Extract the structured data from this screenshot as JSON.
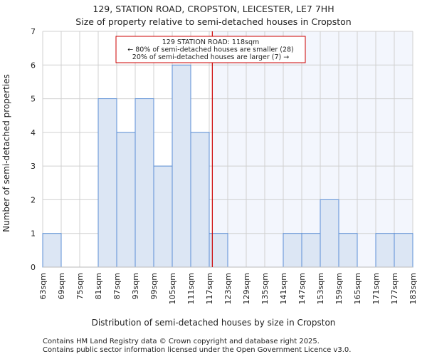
{
  "chart_data": {
    "type": "bar",
    "title": "129, STATION ROAD, CROPSTON, LEICESTER, LE7 7HH",
    "subtitle": "Size of property relative to semi-detached houses in Cropston",
    "xlabel": "Distribution of semi-detached houses by size in Cropston",
    "ylabel": "Number of semi-detached properties",
    "bin_edges": [
      63,
      69,
      75,
      81,
      87,
      93,
      99,
      105,
      111,
      117,
      123,
      129,
      135,
      141,
      147,
      153,
      159,
      165,
      171,
      177,
      183
    ],
    "tick_labels": [
      "63sqm",
      "69sqm",
      "75sqm",
      "81sqm",
      "87sqm",
      "93sqm",
      "99sqm",
      "105sqm",
      "111sqm",
      "117sqm",
      "123sqm",
      "129sqm",
      "135sqm",
      "141sqm",
      "147sqm",
      "153sqm",
      "159sqm",
      "165sqm",
      "171sqm",
      "177sqm",
      "183sqm"
    ],
    "values": [
      1,
      0,
      0,
      5,
      4,
      5,
      3,
      6,
      4,
      1,
      0,
      0,
      0,
      1,
      1,
      2,
      1,
      0,
      1,
      1
    ],
    "ylim": [
      0,
      7
    ],
    "yticks": [
      "0",
      "1",
      "2",
      "3",
      "4",
      "5",
      "6",
      "7"
    ],
    "grid": true,
    "marker_value": 118,
    "annotation": [
      "129 STATION ROAD: 118sqm",
      "← 80% of semi-detached houses are smaller (28)",
      "20% of semi-detached houses are larger (7) →"
    ],
    "colors": {
      "bar_fill": "#dce6f4",
      "bar_edge": "#5b8fd6",
      "marker": "#cc0000",
      "shade": "#f3f6fd"
    }
  },
  "footer": [
    "Contains HM Land Registry data © Crown copyright and database right 2025.",
    "Contains public sector information licensed under the Open Government Licence v3.0."
  ]
}
